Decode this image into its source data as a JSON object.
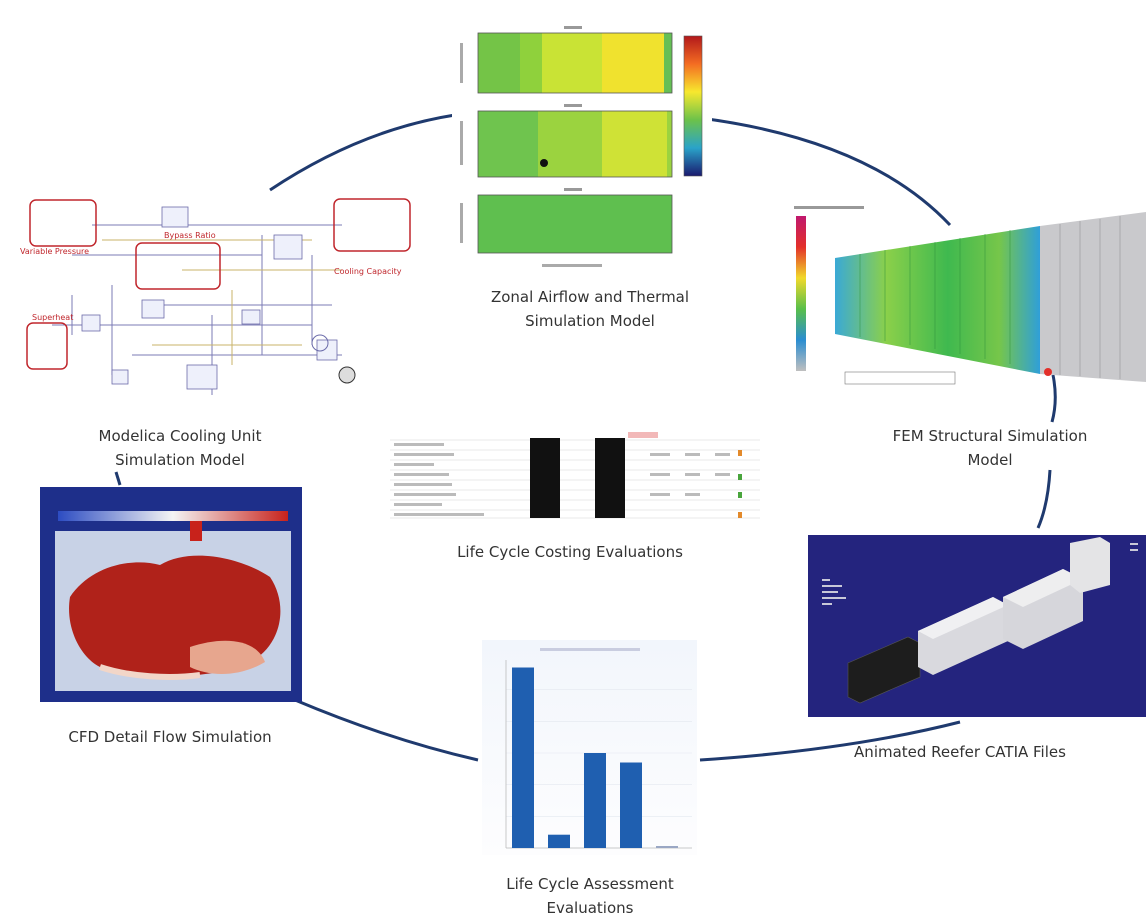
{
  "captions": {
    "zonal": [
      "Zonal Airflow and Thermal",
      "Simulation Model"
    ],
    "fem": [
      "FEM Structural Simulation",
      "Model"
    ],
    "modelica": [
      "Modelica Cooling Unit",
      "Simulation Model"
    ],
    "lcc": "Life Cycle Costing Evaluations",
    "cfd": "CFD Detail Flow Simulation",
    "catia": "Animated Reefer CATIA Files",
    "lca": [
      "Life Cycle Assessment",
      "Evaluations"
    ]
  },
  "modelica_labels": {
    "variable_pressure": "Variable Pressure",
    "bypass_ratio": "Bypass Ratio",
    "superheat": "Superheat",
    "cooling_capacity": "Cooling Capacity"
  },
  "colors": {
    "ring": "#1f3a6e",
    "highlight_box": "#c0272d",
    "cfd_bg": "#1e2f8a",
    "catia_bg": "#24247e",
    "lca_bar": "#1f5fb0"
  },
  "lca_chart": {
    "type": "bar",
    "values": [
      0.95,
      0.07,
      0.5,
      0.45,
      0.01
    ]
  }
}
